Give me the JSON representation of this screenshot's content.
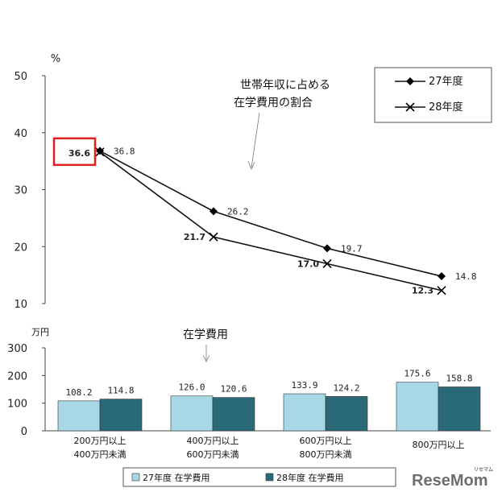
{
  "chart_data": [
    {
      "type": "line",
      "ylabel": "%",
      "ylim": [
        10,
        50
      ],
      "yticks": [
        "50",
        "40",
        "30",
        "20",
        "10"
      ],
      "categories": [
        "200万円以上400万円未満",
        "400万円以上600万円未満",
        "600万円以上800万円未満",
        "800万円以上"
      ],
      "series": [
        {
          "name": "27年度",
          "values": [
            36.8,
            26.2,
            19.7,
            14.8
          ],
          "labels": [
            "36.8",
            "26.2",
            "19.7",
            "14.8"
          ],
          "marker": "diamond"
        },
        {
          "name": "28年度",
          "values": [
            36.6,
            21.7,
            17.0,
            12.3
          ],
          "labels": [
            "36.6",
            "21.7",
            "17.0",
            "12.3"
          ],
          "marker": "x"
        }
      ],
      "annotation": [
        "世帯年収に占める",
        "在学費用の割合"
      ],
      "highlight": {
        "series": "28年度",
        "index": 0,
        "color": "#e02020"
      },
      "legend_position": "top-right"
    },
    {
      "type": "bar",
      "ylabel": "万円",
      "ylim": [
        0,
        300
      ],
      "yticks": [
        "300",
        "200",
        "100",
        "0"
      ],
      "categories": [
        [
          "200万円以上",
          "400万円未満"
        ],
        [
          "400万円以上",
          "600万円未満"
        ],
        [
          "600万円以上",
          "800万円未満"
        ],
        [
          "800万円以上"
        ]
      ],
      "series": [
        {
          "name": "27年度 在学費用",
          "values": [
            108.2,
            126.0,
            133.9,
            175.6
          ],
          "labels": [
            "108.2",
            "126.0",
            "133.9",
            "175.6"
          ],
          "color": "#a8d8e6"
        },
        {
          "name": "28年度 在学費用",
          "values": [
            114.8,
            120.6,
            124.2,
            158.8
          ],
          "labels": [
            "114.8",
            "120.6",
            "124.2",
            "158.8"
          ],
          "color": "#2a6a78"
        }
      ],
      "annotation": "在学費用",
      "legend_position": "bottom"
    }
  ],
  "legend_line": [
    "27年度",
    "28年度"
  ],
  "legend_bar": [
    "27年度 在学費用",
    "28年度 在学費用"
  ],
  "watermark": {
    "text": "ReseMom",
    "sub": "リセマム",
    "color": "#555555"
  }
}
